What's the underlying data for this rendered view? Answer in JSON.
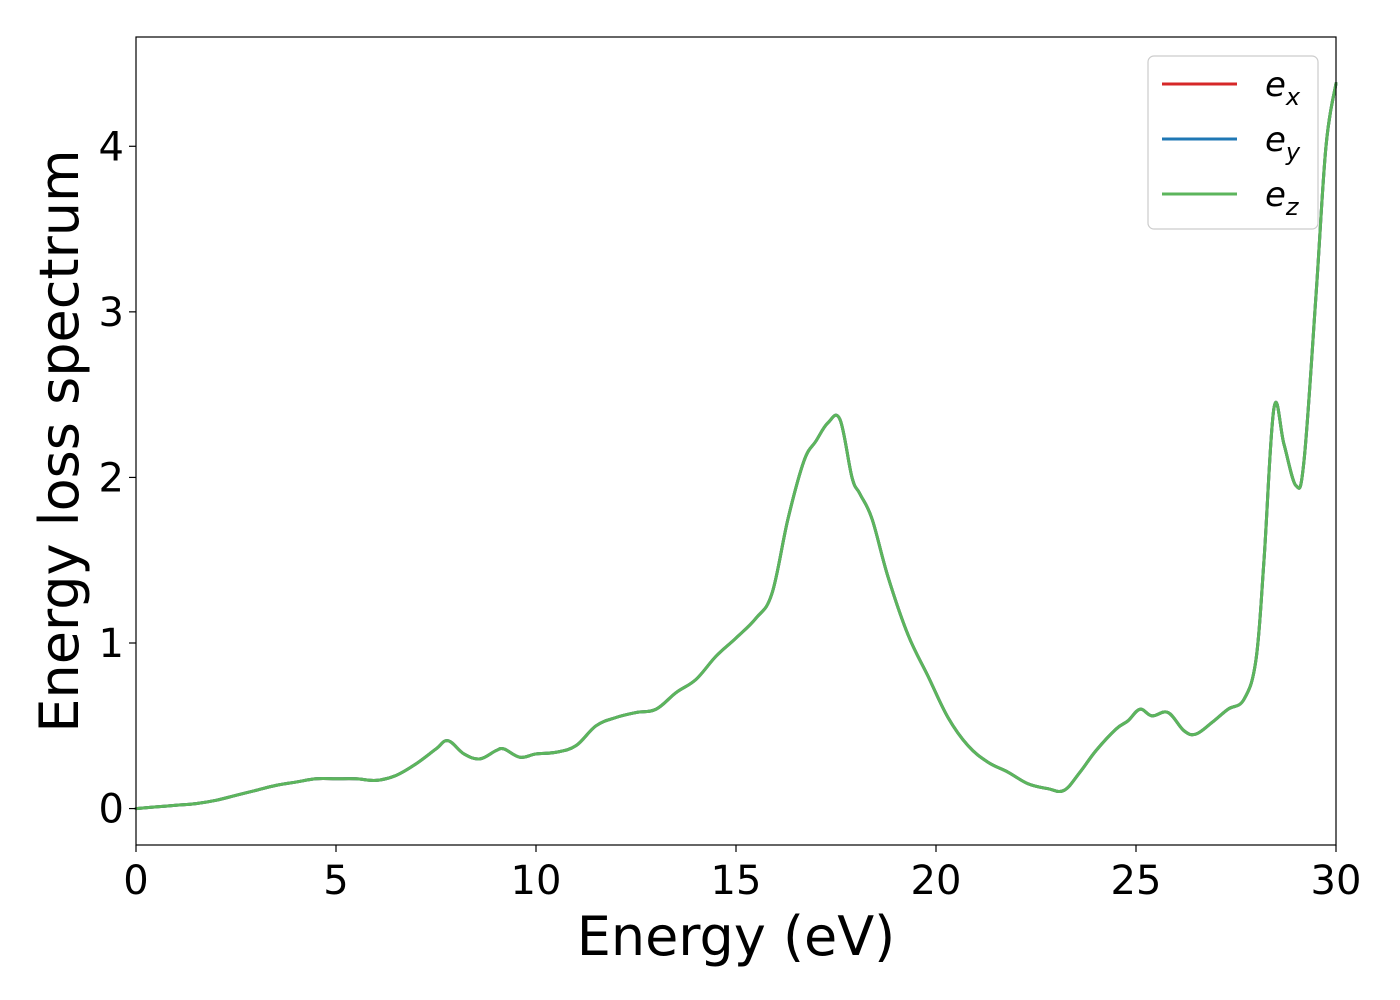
{
  "chart_data": {
    "type": "line",
    "title": "",
    "xlabel": "Energy (eV)",
    "ylabel": "Energy loss spectrum",
    "xlim": [
      0,
      30
    ],
    "ylim": [
      -0.22,
      4.66
    ],
    "xticks": [
      0,
      5,
      10,
      15,
      20,
      25,
      30
    ],
    "xtick_labels": [
      "0",
      "5",
      "10",
      "15",
      "20",
      "25",
      "30"
    ],
    "yticks": [
      0,
      1,
      2,
      3,
      4
    ],
    "ytick_labels": [
      "0",
      "1",
      "2",
      "3",
      "4"
    ],
    "grid": false,
    "legend_position": "top-right",
    "series": [
      {
        "name": "e",
        "subscript": "x",
        "color": "#d62728",
        "x": [
          0,
          0.5,
          1,
          1.5,
          2,
          2.5,
          3,
          3.5,
          4,
          4.5,
          5,
          5.5,
          6,
          6.5,
          7,
          7.5,
          7.8,
          8.2,
          8.6,
          9,
          9.2,
          9.6,
          10,
          10.5,
          11,
          11.5,
          12,
          12.5,
          13,
          13.5,
          14,
          14.5,
          15,
          15.5,
          15.9,
          16.3,
          16.7,
          17,
          17.3,
          17.6,
          17.9,
          18.1,
          18.4,
          18.8,
          19.3,
          19.8,
          20.3,
          20.8,
          21.3,
          21.8,
          22.3,
          22.8,
          23.2,
          23.6,
          24,
          24.5,
          24.8,
          25.1,
          25.4,
          25.8,
          26.2,
          26.5,
          26.9,
          27.3,
          27.7,
          28,
          28.2,
          28.45,
          28.7,
          29,
          29.2,
          29.5,
          29.75,
          30
        ],
        "y": [
          0.0,
          0.01,
          0.02,
          0.03,
          0.05,
          0.08,
          0.11,
          0.14,
          0.16,
          0.18,
          0.18,
          0.18,
          0.17,
          0.2,
          0.27,
          0.36,
          0.41,
          0.33,
          0.3,
          0.35,
          0.36,
          0.31,
          0.33,
          0.34,
          0.38,
          0.5,
          0.55,
          0.58,
          0.6,
          0.7,
          0.78,
          0.92,
          1.03,
          1.15,
          1.3,
          1.75,
          2.1,
          2.22,
          2.33,
          2.35,
          2.0,
          1.9,
          1.75,
          1.4,
          1.05,
          0.8,
          0.55,
          0.38,
          0.28,
          0.22,
          0.15,
          0.12,
          0.11,
          0.22,
          0.35,
          0.48,
          0.53,
          0.6,
          0.56,
          0.58,
          0.47,
          0.45,
          0.52,
          0.6,
          0.66,
          0.9,
          1.5,
          2.42,
          2.2,
          1.95,
          2.1,
          3.1,
          4.0,
          4.38
        ]
      },
      {
        "name": "e",
        "subscript": "y",
        "color": "#1f77b4",
        "x": [
          0,
          0.5,
          1,
          1.5,
          2,
          2.5,
          3,
          3.5,
          4,
          4.5,
          5,
          5.5,
          6,
          6.5,
          7,
          7.5,
          7.8,
          8.2,
          8.6,
          9,
          9.2,
          9.6,
          10,
          10.5,
          11,
          11.5,
          12,
          12.5,
          13,
          13.5,
          14,
          14.5,
          15,
          15.5,
          15.9,
          16.3,
          16.7,
          17,
          17.3,
          17.6,
          17.9,
          18.1,
          18.4,
          18.8,
          19.3,
          19.8,
          20.3,
          20.8,
          21.3,
          21.8,
          22.3,
          22.8,
          23.2,
          23.6,
          24,
          24.5,
          24.8,
          25.1,
          25.4,
          25.8,
          26.2,
          26.5,
          26.9,
          27.3,
          27.7,
          28,
          28.2,
          28.45,
          28.7,
          29,
          29.2,
          29.5,
          29.75,
          30
        ],
        "y": [
          0.0,
          0.01,
          0.02,
          0.03,
          0.05,
          0.08,
          0.11,
          0.14,
          0.16,
          0.18,
          0.18,
          0.18,
          0.17,
          0.2,
          0.27,
          0.36,
          0.41,
          0.33,
          0.3,
          0.35,
          0.36,
          0.31,
          0.33,
          0.34,
          0.38,
          0.5,
          0.55,
          0.58,
          0.6,
          0.7,
          0.78,
          0.92,
          1.03,
          1.15,
          1.3,
          1.75,
          2.1,
          2.22,
          2.33,
          2.35,
          2.0,
          1.9,
          1.75,
          1.4,
          1.05,
          0.8,
          0.55,
          0.38,
          0.28,
          0.22,
          0.15,
          0.12,
          0.11,
          0.22,
          0.35,
          0.48,
          0.53,
          0.6,
          0.56,
          0.58,
          0.47,
          0.45,
          0.52,
          0.6,
          0.66,
          0.9,
          1.5,
          2.42,
          2.2,
          1.95,
          2.1,
          3.1,
          4.0,
          4.38
        ]
      },
      {
        "name": "e",
        "subscript": "z",
        "color": "#5cb55c",
        "x": [
          0,
          0.5,
          1,
          1.5,
          2,
          2.5,
          3,
          3.5,
          4,
          4.5,
          5,
          5.5,
          6,
          6.5,
          7,
          7.5,
          7.8,
          8.2,
          8.6,
          9,
          9.2,
          9.6,
          10,
          10.5,
          11,
          11.5,
          12,
          12.5,
          13,
          13.5,
          14,
          14.5,
          15,
          15.5,
          15.9,
          16.3,
          16.7,
          17,
          17.3,
          17.6,
          17.9,
          18.1,
          18.4,
          18.8,
          19.3,
          19.8,
          20.3,
          20.8,
          21.3,
          21.8,
          22.3,
          22.8,
          23.2,
          23.6,
          24,
          24.5,
          24.8,
          25.1,
          25.4,
          25.8,
          26.2,
          26.5,
          26.9,
          27.3,
          27.7,
          28,
          28.2,
          28.45,
          28.7,
          29,
          29.2,
          29.5,
          29.75,
          30
        ],
        "y": [
          0.0,
          0.01,
          0.02,
          0.03,
          0.05,
          0.08,
          0.11,
          0.14,
          0.16,
          0.18,
          0.18,
          0.18,
          0.17,
          0.2,
          0.27,
          0.36,
          0.41,
          0.33,
          0.3,
          0.35,
          0.36,
          0.31,
          0.33,
          0.34,
          0.38,
          0.5,
          0.55,
          0.58,
          0.6,
          0.7,
          0.78,
          0.92,
          1.03,
          1.15,
          1.3,
          1.75,
          2.1,
          2.22,
          2.33,
          2.35,
          2.0,
          1.9,
          1.75,
          1.4,
          1.05,
          0.8,
          0.55,
          0.38,
          0.28,
          0.22,
          0.15,
          0.12,
          0.11,
          0.22,
          0.35,
          0.48,
          0.53,
          0.6,
          0.56,
          0.58,
          0.47,
          0.45,
          0.52,
          0.6,
          0.66,
          0.9,
          1.5,
          2.42,
          2.2,
          1.95,
          2.1,
          3.1,
          4.0,
          4.38
        ]
      }
    ]
  }
}
